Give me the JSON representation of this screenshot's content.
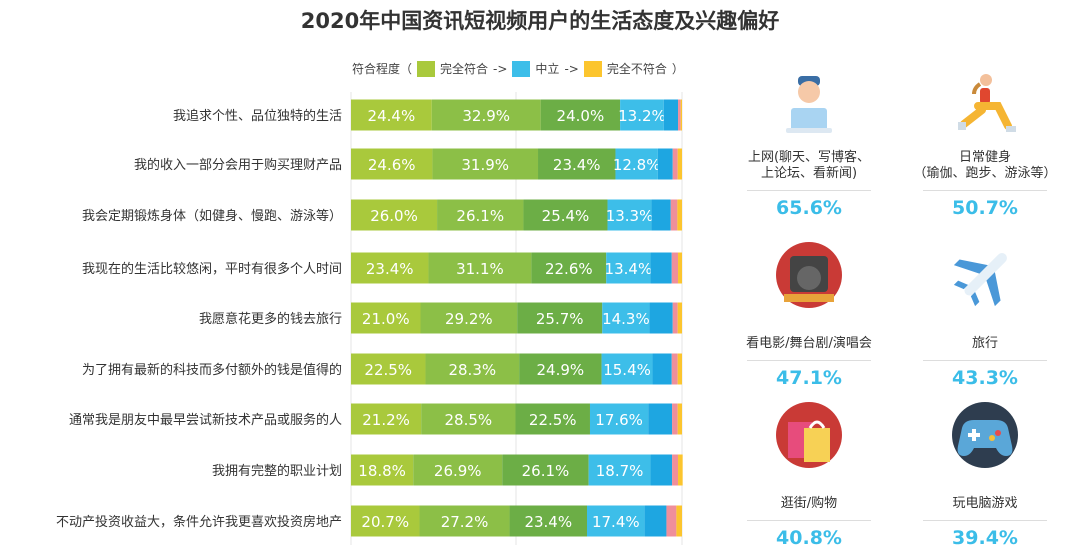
{
  "title": "2020年中国资讯短视频用户的生活态度及兴趣偏好",
  "legend": {
    "prefix": "符合程度（",
    "a": "完全符合",
    "arrow1": "->",
    "b": "中立",
    "arrow2": "->",
    "c": "完全不符合",
    "suffix": "）"
  },
  "colors": [
    "#a9c93c",
    "#8cbf47",
    "#6cae46",
    "#3dbee9",
    "#1ea6e1",
    "#ef8f9b",
    "#fcc52e"
  ],
  "chart_data": {
    "type": "bar",
    "orientation": "horizontal",
    "stacked": true,
    "xlim": [
      0,
      100
    ],
    "categories": [
      "我追求个性、品位独特的生活",
      "我的收入一部分会用于购买理财产品",
      "我会定期锻炼身体（如健身、慢跑、游泳等）",
      "我现在的生活比较悠闲，平时有很多个人时间",
      "我愿意花更多的钱去旅行",
      "为了拥有最新的科技而多付额外的钱是值得的",
      "通常我是朋友中最早尝试新技术产品或服务的人",
      "我拥有完整的职业计划",
      "不动产投资收益大，条件允许我更喜欢投资房地产"
    ],
    "series": [
      {
        "values": [
          24.4,
          24.6,
          26.0,
          23.4,
          21.0,
          22.5,
          21.2,
          18.8,
          20.7
        ]
      },
      {
        "values": [
          32.9,
          31.9,
          26.1,
          31.1,
          29.2,
          28.3,
          28.5,
          26.9,
          27.2
        ]
      },
      {
        "values": [
          24.0,
          23.4,
          25.4,
          22.6,
          25.7,
          24.9,
          22.5,
          26.1,
          23.4
        ]
      },
      {
        "values": [
          13.2,
          12.8,
          13.3,
          13.4,
          14.3,
          15.4,
          17.6,
          18.7,
          17.4
        ]
      },
      {
        "values": [
          4.3,
          4.5,
          5.8,
          6.4,
          7.0,
          5.8,
          7.2,
          6.5,
          6.6
        ]
      },
      {
        "values": [
          0.8,
          1.5,
          2.0,
          1.9,
          1.5,
          1.8,
          1.7,
          1.8,
          3.0
        ]
      },
      {
        "values": [
          0.4,
          1.3,
          1.4,
          1.2,
          1.3,
          1.3,
          1.3,
          1.4,
          1.7
        ]
      }
    ],
    "labeled_series": 4
  },
  "interests": [
    {
      "label": "上网(聊天、写博客、\n上论坛、看新闻)",
      "value": "65.6%",
      "icon": "laptop-user-icon"
    },
    {
      "label": "日常健身\n（瑜伽、跑步、游泳等）",
      "value": "50.7%",
      "icon": "fitness-icon"
    },
    {
      "label": "看电影/舞台剧/演唱会",
      "value": "47.1%",
      "icon": "theater-icon"
    },
    {
      "label": "旅行",
      "value": "43.3%",
      "icon": "airplane-icon"
    },
    {
      "label": "逛街/购物",
      "value": "40.8%",
      "icon": "shopping-bag-icon"
    },
    {
      "label": "玩电脑游戏",
      "value": "39.4%",
      "icon": "gamepad-icon"
    }
  ]
}
